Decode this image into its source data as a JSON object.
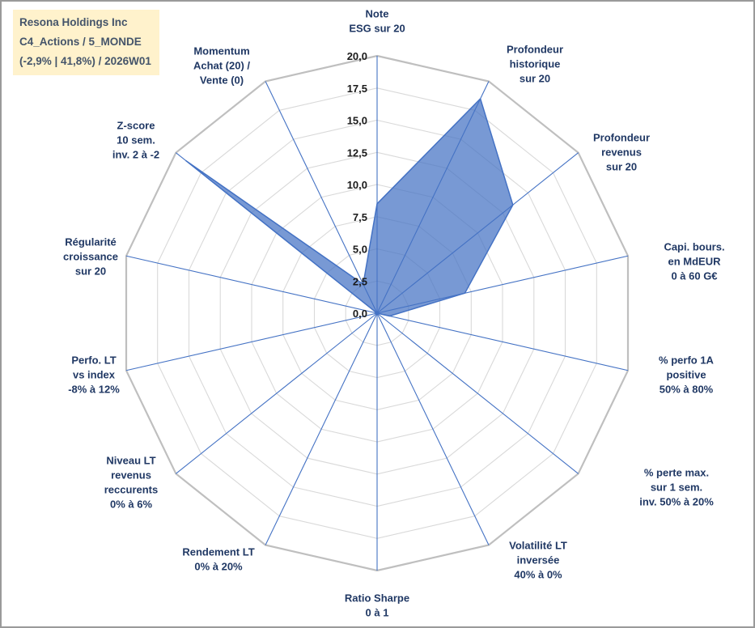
{
  "info_box": {
    "line1": "Resona Holdings Inc",
    "line2": "C4_Actions / 5_MONDE",
    "line3": "(-2,9% | 41,8%) / 2026W01"
  },
  "chart_data": {
    "type": "radar",
    "title": "",
    "categories": [
      "Note ESG sur 20",
      "Profondeur historique sur 20",
      "Profondeur revenus sur 20",
      "Capi. bours. en MdEUR 0 à 60 G€",
      "% perfo 1A positive 50% à 80%",
      "% perte max. sur 1 sem. inv. 50% à 20%",
      "Volatilité LT inversée 40% à 0%",
      "Ratio Sharpe 0 à 1",
      "Rendement LT 0% à 20%",
      "Niveau LT revenus reccurents 0% à 6%",
      "Perfo. LT vs index -8% à 12%",
      "Régularité croissance sur 20",
      "Z-score 10 sem. inv. 2 à -2",
      "Momentum Achat (20) / Vente (0)"
    ],
    "label_lines": [
      [
        "Note",
        "ESG sur 20"
      ],
      [
        "Profondeur",
        "historique",
        "sur 20"
      ],
      [
        "Profondeur",
        "revenus",
        "sur 20"
      ],
      [
        "Capi. bours.",
        "en MdEUR",
        "0 à 60 G€"
      ],
      [
        "% perfo 1A",
        "positive",
        "50% à 80%"
      ],
      [
        "% perte max.",
        "sur 1 sem.",
        "inv. 50% à 20%"
      ],
      [
        "Volatilité LT",
        "inversée",
        "40% à 0%"
      ],
      [
        "Ratio Sharpe",
        "0 à 1"
      ],
      [
        "Rendement LT",
        "0% à 20%"
      ],
      [
        "Niveau LT",
        "revenus",
        "reccurents",
        "0% à 6%"
      ],
      [
        "Perfo. LT",
        "vs index",
        "-8% à 12%"
      ],
      [
        "Régularité",
        "croissance",
        "sur 20"
      ],
      [
        "Z-score",
        "10 sem.",
        "inv. 2 à -2"
      ],
      [
        "Momentum",
        "Achat (20) /",
        "Vente (0)"
      ]
    ],
    "values": [
      8.5,
      18.5,
      13.5,
      7,
      1,
      0,
      0,
      0,
      0,
      0,
      0,
      0,
      19,
      2.5
    ],
    "rmin": 0,
    "rmax": 20,
    "tick_step": 2.5,
    "tick_labels": [
      "0,0",
      "2,5",
      "5,0",
      "7,5",
      "10,0",
      "12,5",
      "15,0",
      "17,5",
      "20,0"
    ],
    "gridline_style": "polygonal",
    "legend": "none",
    "colors": {
      "series_fill": "#4472C4",
      "series_fill_opacity": "0.72",
      "series_stroke": "#4472C4",
      "spoke": "#4472C4",
      "ring": "#D9D9D9",
      "outer_ring": "#BFBFBF",
      "axis_label": "#203864",
      "tick_label": "#1A1A1A",
      "info_box_bg": "#FFF2CC"
    }
  }
}
